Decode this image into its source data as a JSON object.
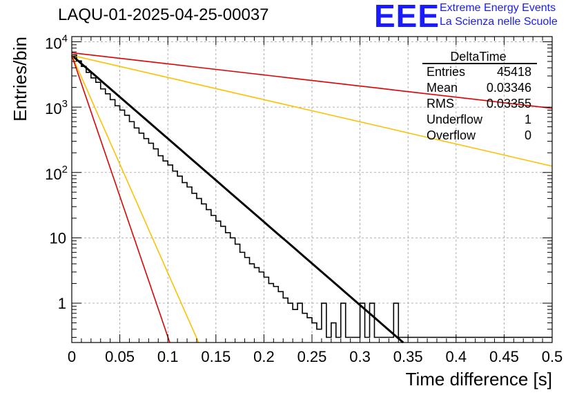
{
  "title": "LAQU-01-2025-04-25-00037",
  "logo": {
    "mark": "EEE",
    "line1": "Extreme Energy Events",
    "line2": "La Scienza nelle Scuole",
    "color": "#1a1aff"
  },
  "stats_box": {
    "name": "DeltaTime",
    "rows": [
      {
        "label": "Entries",
        "value": "45418"
      },
      {
        "label": "Mean",
        "value": "0.03346"
      },
      {
        "label": "RMS",
        "value": "0.03355"
      },
      {
        "label": "Underflow",
        "value": "1"
      },
      {
        "label": "Overflow",
        "value": "0"
      }
    ]
  },
  "chart_data": {
    "type": "histogram",
    "title": "LAQU-01-2025-04-25-00037",
    "xlabel": "Time difference [s]",
    "ylabel": "Entries/bin",
    "xlim": [
      0,
      0.5
    ],
    "ylog": true,
    "ylim": [
      0.25,
      12000
    ],
    "grid": true,
    "xticks": [
      "0",
      "0.05",
      "0.1",
      "0.15",
      "0.2",
      "0.25",
      "0.3",
      "0.35",
      "0.4",
      "0.45",
      "0.5"
    ],
    "yticks": [
      {
        "value": 1,
        "label": "1"
      },
      {
        "value": 10,
        "label": "10"
      },
      {
        "value": 100,
        "label": "10",
        "exp": "2"
      },
      {
        "value": 1000,
        "label": "10",
        "exp": "3"
      },
      {
        "value": 10000,
        "label": "10",
        "exp": "4"
      }
    ],
    "histogram": {
      "name": "DeltaTime",
      "bin_width": 0.005,
      "bin_start": 0,
      "counts": [
        6300,
        5100,
        4200,
        3400,
        2800,
        2400,
        1900,
        1600,
        1300,
        1050,
        900,
        750,
        600,
        480,
        400,
        330,
        280,
        230,
        180,
        150,
        130,
        105,
        88,
        70,
        60,
        48,
        40,
        33,
        27,
        22,
        18,
        15,
        12,
        10,
        8,
        6,
        5,
        4,
        3.5,
        3,
        2.5,
        2,
        1.8,
        1.5,
        1.2,
        1,
        0.8,
        1,
        0.7,
        0.6,
        0.5,
        0.4,
        1,
        0.3,
        0.5,
        0.3,
        1,
        0.3,
        0.3,
        0.3,
        1,
        0.3,
        1,
        0.3,
        0.3,
        0.3,
        0.3,
        1,
        0.3,
        0.3,
        0.3,
        0.3,
        0.3,
        0.3,
        0.3,
        0.3,
        0.3,
        0.3,
        0.3,
        0.3,
        0.3,
        0.3,
        0.3,
        0.3,
        0.3,
        0.3,
        0.3,
        0.3,
        0.3,
        0.3,
        0.3,
        0.3,
        0.3,
        0.3,
        0.3,
        0.3,
        0.3,
        0.3,
        0.3,
        0.3
      ],
      "color": "#000000"
    },
    "series": [
      {
        "name": "fit",
        "color": "#000000",
        "x": [
          0,
          0.345
        ],
        "y": [
          6200,
          0.25
        ],
        "width": 3
      },
      {
        "name": "upper-bound-red",
        "color": "#e00000",
        "x": [
          0,
          0.5
        ],
        "y": [
          6800,
          960
        ],
        "width": 1.6
      },
      {
        "name": "upper-bound-orange",
        "color": "#ffc000",
        "x": [
          0,
          0.5
        ],
        "y": [
          6200,
          125
        ],
        "width": 1.6
      },
      {
        "name": "lower-bound-orange",
        "color": "#ffc000",
        "x": [
          0,
          0.132
        ],
        "y": [
          6200,
          0.25
        ],
        "width": 1.6
      },
      {
        "name": "lower-bound-red",
        "color": "#e00000",
        "x": [
          0,
          0.102
        ],
        "y": [
          6200,
          0.25
        ],
        "width": 1.6
      }
    ]
  }
}
